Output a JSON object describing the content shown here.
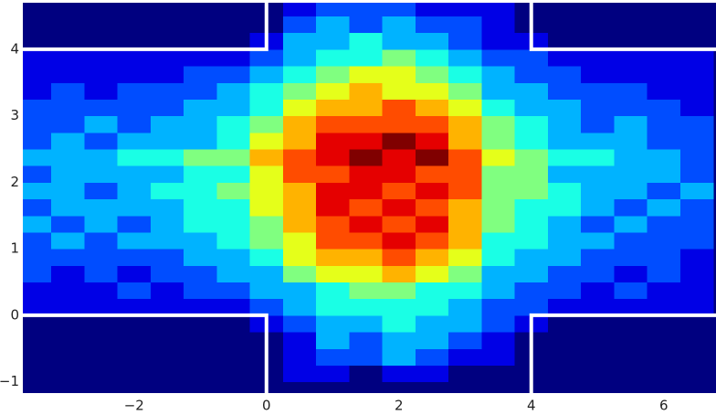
{
  "chart_data": {
    "type": "heatmap",
    "colormap": "jet",
    "clim": [
      0,
      10
    ],
    "xlim": [
      -3.68,
      6.79
    ],
    "ylim": [
      -1.17,
      4.7
    ],
    "xticks": [
      {
        "value": -2,
        "label": "−2"
      },
      0,
      2,
      4,
      6
    ],
    "yticks": [
      {
        "value": -1,
        "label": "−1"
      },
      0,
      1,
      2,
      3,
      4
    ],
    "xbins": [
      -3.75,
      -3.25,
      -2.75,
      -2.25,
      -1.75,
      -1.25,
      -0.75,
      -0.25,
      0.25,
      0.75,
      1.25,
      1.75,
      2.25,
      2.75,
      3.25,
      3.75,
      4.25,
      4.75,
      5.25,
      5.75,
      6.25,
      6.75
    ],
    "ybins": [
      -1.25,
      -1.0,
      -0.75,
      -0.5,
      -0.25,
      0,
      0.25,
      0.5,
      0.75,
      1.0,
      1.25,
      1.5,
      1.75,
      2.0,
      2.25,
      2.5,
      2.75,
      3.0,
      3.25,
      3.5,
      3.75,
      4.0,
      4.25,
      4.5,
      4.75
    ],
    "values": [
      [
        0,
        0,
        0,
        0,
        0,
        0,
        0,
        0,
        0,
        0,
        0,
        0,
        0,
        0,
        0,
        0,
        0,
        0,
        0,
        0,
        0
      ],
      [
        0,
        0,
        0,
        0,
        0,
        0,
        0,
        0,
        1,
        1,
        0,
        1,
        1,
        0,
        0,
        0,
        0,
        0,
        0,
        0,
        0
      ],
      [
        0,
        0,
        0,
        0,
        0,
        0,
        0,
        0,
        1,
        2,
        2,
        3,
        2,
        1,
        1,
        0,
        0,
        0,
        0,
        0,
        0
      ],
      [
        0,
        0,
        0,
        0,
        0,
        0,
        0,
        0,
        1,
        3,
        2,
        3,
        3,
        2,
        1,
        0,
        0,
        0,
        0,
        0,
        0
      ],
      [
        0,
        0,
        0,
        0,
        0,
        0,
        0,
        1,
        2,
        3,
        3,
        4,
        3,
        3,
        2,
        1,
        0,
        0,
        0,
        0,
        0
      ],
      [
        1,
        1,
        1,
        1,
        1,
        1,
        1,
        2,
        3,
        4,
        4,
        4,
        4,
        3,
        2,
        2,
        1,
        1,
        1,
        1,
        1
      ],
      [
        1,
        1,
        1,
        2,
        1,
        2,
        2,
        3,
        3,
        4,
        5,
        5,
        4,
        4,
        3,
        2,
        2,
        1,
        2,
        1,
        1
      ],
      [
        2,
        1,
        2,
        1,
        2,
        2,
        3,
        3,
        5,
        6,
        6,
        7,
        6,
        5,
        3,
        3,
        2,
        2,
        1,
        2,
        1
      ],
      [
        2,
        2,
        2,
        2,
        2,
        3,
        3,
        4,
        6,
        7,
        7,
        8,
        7,
        6,
        4,
        3,
        3,
        2,
        2,
        2,
        1
      ],
      [
        2,
        3,
        2,
        3,
        3,
        3,
        4,
        5,
        6,
        8,
        8,
        9,
        8,
        7,
        4,
        4,
        3,
        3,
        2,
        2,
        2
      ],
      [
        3,
        2,
        3,
        2,
        3,
        4,
        4,
        5,
        7,
        8,
        9,
        8,
        9,
        7,
        5,
        4,
        3,
        2,
        3,
        2,
        2
      ],
      [
        2,
        3,
        3,
        3,
        3,
        4,
        4,
        6,
        7,
        9,
        8,
        9,
        8,
        7,
        5,
        4,
        4,
        3,
        2,
        3,
        2
      ],
      [
        3,
        3,
        2,
        3,
        4,
        4,
        5,
        6,
        7,
        9,
        9,
        8,
        9,
        8,
        5,
        5,
        4,
        3,
        3,
        2,
        3
      ],
      [
        2,
        3,
        3,
        3,
        3,
        4,
        4,
        6,
        8,
        8,
        9,
        9,
        8,
        8,
        5,
        5,
        3,
        3,
        3,
        3,
        2
      ],
      [
        3,
        3,
        3,
        4,
        4,
        5,
        5,
        7,
        8,
        9,
        10,
        9,
        10,
        8,
        6,
        5,
        4,
        4,
        3,
        3,
        2
      ],
      [
        2,
        3,
        2,
        3,
        3,
        3,
        4,
        6,
        7,
        9,
        9,
        10,
        9,
        7,
        5,
        4,
        3,
        3,
        3,
        2,
        2
      ],
      [
        2,
        2,
        3,
        2,
        3,
        3,
        4,
        5,
        7,
        8,
        8,
        8,
        8,
        7,
        5,
        4,
        3,
        2,
        3,
        2,
        2
      ],
      [
        2,
        2,
        2,
        2,
        2,
        3,
        3,
        4,
        6,
        7,
        7,
        8,
        7,
        6,
        4,
        3,
        3,
        2,
        2,
        2,
        1
      ],
      [
        1,
        2,
        1,
        2,
        2,
        2,
        3,
        4,
        5,
        6,
        7,
        6,
        6,
        5,
        3,
        3,
        2,
        2,
        2,
        1,
        1
      ],
      [
        1,
        1,
        1,
        1,
        1,
        2,
        2,
        3,
        4,
        5,
        6,
        6,
        5,
        4,
        3,
        2,
        2,
        1,
        1,
        1,
        1
      ],
      [
        1,
        1,
        1,
        1,
        1,
        1,
        1,
        2,
        3,
        4,
        4,
        5,
        4,
        3,
        2,
        2,
        1,
        1,
        1,
        1,
        1
      ],
      [
        0,
        0,
        0,
        0,
        0,
        0,
        0,
        1,
        3,
        3,
        4,
        3,
        3,
        2,
        1,
        1,
        0,
        0,
        0,
        0,
        0
      ],
      [
        0,
        0,
        0,
        0,
        0,
        0,
        0,
        0,
        2,
        3,
        2,
        3,
        2,
        2,
        1,
        0,
        0,
        0,
        0,
        0,
        0
      ],
      [
        0,
        0,
        0,
        0,
        0,
        0,
        0,
        0,
        1,
        2,
        2,
        2,
        1,
        1,
        1,
        0,
        0,
        0,
        0,
        0,
        0
      ]
    ],
    "wall_color": "#ffffff",
    "walls": [
      {
        "x": [
          -3.68,
          0,
          0
        ],
        "y": [
          0,
          0,
          -1.17
        ]
      },
      {
        "x": [
          -3.68,
          0,
          0
        ],
        "y": [
          4,
          4,
          4.7
        ]
      },
      {
        "x": [
          6.79,
          4,
          4
        ],
        "y": [
          0,
          0,
          -1.17
        ]
      },
      {
        "x": [
          6.79,
          4,
          4
        ],
        "y": [
          4,
          4,
          4.7
        ]
      }
    ]
  }
}
